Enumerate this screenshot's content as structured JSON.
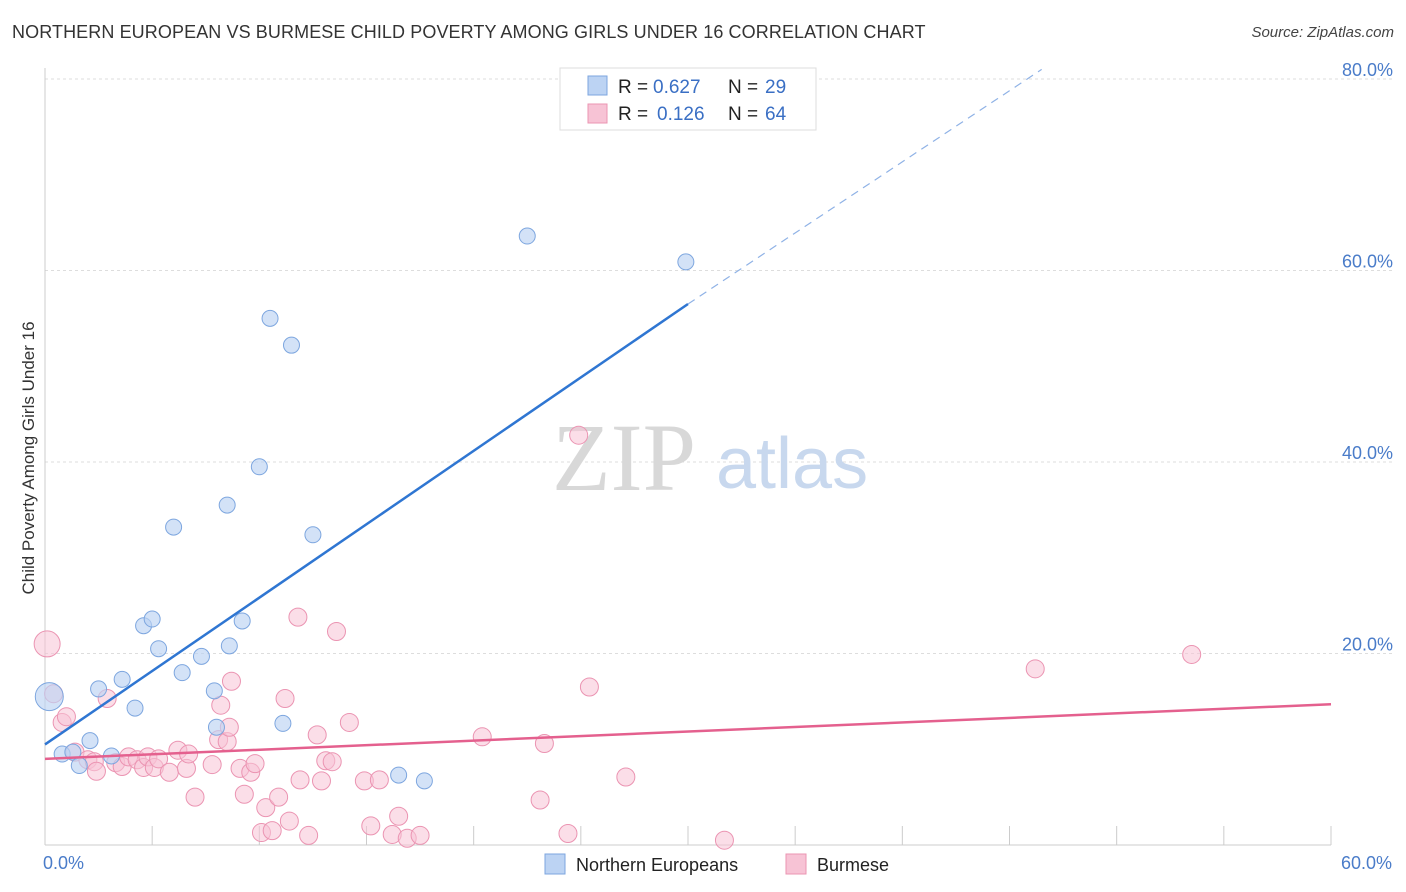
{
  "title": "NORTHERN EUROPEAN VS BURMESE CHILD POVERTY AMONG GIRLS UNDER 16 CORRELATION CHART",
  "source": "Source: ZipAtlas.com",
  "watermark": {
    "zip": "ZIP",
    "atlas": "atlas"
  },
  "colors": {
    "blue": "#2f76d2",
    "pink": "#e4608e",
    "blue_fill": "#bcd3f3",
    "pink_fill": "#f7c3d5",
    "grid": "#dddddd",
    "tick_text": "#4a7cc9"
  },
  "chart_data": {
    "type": "scatter",
    "title": "NORTHERN EUROPEAN VS BURMESE CHILD POVERTY AMONG GIRLS UNDER 16 CORRELATION CHART",
    "xlabel": "",
    "ylabel": "Child Poverty Among Girls Under 16",
    "xlim": [
      0,
      60
    ],
    "ylim": [
      0,
      80
    ],
    "x_tick_labels": [
      "0.0%",
      "60.0%"
    ],
    "y_ticks": [
      20,
      40,
      60,
      80
    ],
    "y_tick_labels": [
      "20.0%",
      "40.0%",
      "60.0%",
      "80.0%"
    ],
    "legend_stats": [
      {
        "r_label": "R =",
        "r": "0.627",
        "n_label": "N =",
        "n": "29"
      },
      {
        "r_label": "R =",
        "r": "0.126",
        "n_label": "N =",
        "n": "64"
      }
    ],
    "series": [
      {
        "name": "Northern Europeans",
        "color": "#2f76d2",
        "trend": {
          "x0": 0,
          "y0": 10.5,
          "x1": 30,
          "y1": 56.5,
          "dash_x1": 46.5,
          "dash_y1": 81
        },
        "points": [
          [
            0.2,
            15.5
          ],
          [
            0.8,
            9.5
          ],
          [
            1.3,
            9.7
          ],
          [
            1.6,
            8.3
          ],
          [
            2.1,
            10.9
          ],
          [
            2.5,
            16.3
          ],
          [
            3.1,
            9.3
          ],
          [
            3.6,
            17.3
          ],
          [
            4.2,
            14.3
          ],
          [
            4.6,
            22.9
          ],
          [
            5.0,
            23.6
          ],
          [
            5.3,
            20.5
          ],
          [
            6.0,
            33.2
          ],
          [
            6.4,
            18.0
          ],
          [
            7.3,
            19.7
          ],
          [
            7.9,
            16.1
          ],
          [
            8.0,
            12.3
          ],
          [
            8.5,
            35.5
          ],
          [
            8.6,
            20.8
          ],
          [
            9.2,
            23.4
          ],
          [
            10.0,
            39.5
          ],
          [
            10.5,
            55.0
          ],
          [
            11.1,
            12.7
          ],
          [
            11.5,
            52.2
          ],
          [
            12.5,
            32.4
          ],
          [
            16.5,
            7.3
          ],
          [
            17.7,
            6.7
          ],
          [
            22.5,
            63.6
          ],
          [
            29.9,
            60.9
          ]
        ]
      },
      {
        "name": "Burmese",
        "color": "#e4608e",
        "trend": {
          "x0": 0,
          "y0": 9.0,
          "x1": 60,
          "y1": 14.7
        },
        "points": [
          [
            0.1,
            21.0
          ],
          [
            0.4,
            15.8
          ],
          [
            0.8,
            12.8
          ],
          [
            1.0,
            13.4
          ],
          [
            1.4,
            9.7
          ],
          [
            2.0,
            8.9
          ],
          [
            2.3,
            8.7
          ],
          [
            2.4,
            7.7
          ],
          [
            2.9,
            15.3
          ],
          [
            3.3,
            8.6
          ],
          [
            3.6,
            8.2
          ],
          [
            3.9,
            9.2
          ],
          [
            4.3,
            8.9
          ],
          [
            4.6,
            8.1
          ],
          [
            4.8,
            9.2
          ],
          [
            5.1,
            8.1
          ],
          [
            5.3,
            9.0
          ],
          [
            5.8,
            7.6
          ],
          [
            6.2,
            9.9
          ],
          [
            6.6,
            8.0
          ],
          [
            6.7,
            9.5
          ],
          [
            7.0,
            5.0
          ],
          [
            7.8,
            8.4
          ],
          [
            8.1,
            11.0
          ],
          [
            8.2,
            14.6
          ],
          [
            8.5,
            10.8
          ],
          [
            8.6,
            12.3
          ],
          [
            8.7,
            17.1
          ],
          [
            9.1,
            8.0
          ],
          [
            9.3,
            5.3
          ],
          [
            9.6,
            7.6
          ],
          [
            9.8,
            8.5
          ],
          [
            10.1,
            1.3
          ],
          [
            10.3,
            3.9
          ],
          [
            10.6,
            1.5
          ],
          [
            10.9,
            5.0
          ],
          [
            11.2,
            15.3
          ],
          [
            11.4,
            2.5
          ],
          [
            11.8,
            23.8
          ],
          [
            11.9,
            6.8
          ],
          [
            12.3,
            1.0
          ],
          [
            12.7,
            11.5
          ],
          [
            12.9,
            6.7
          ],
          [
            13.1,
            8.8
          ],
          [
            13.4,
            8.7
          ],
          [
            13.6,
            22.3
          ],
          [
            14.2,
            12.8
          ],
          [
            14.9,
            6.7
          ],
          [
            15.2,
            2.0
          ],
          [
            15.6,
            6.8
          ],
          [
            16.2,
            1.1
          ],
          [
            16.5,
            3.0
          ],
          [
            16.9,
            0.7
          ],
          [
            17.5,
            1.0
          ],
          [
            20.4,
            11.3
          ],
          [
            23.1,
            4.7
          ],
          [
            23.3,
            10.6
          ],
          [
            24.4,
            1.2
          ],
          [
            24.9,
            42.8
          ],
          [
            25.4,
            16.5
          ],
          [
            27.1,
            7.1
          ],
          [
            31.7,
            0.5
          ],
          [
            46.2,
            18.4
          ],
          [
            53.5,
            19.9
          ]
        ]
      }
    ]
  },
  "legend_bottom": [
    {
      "label": "Northern Europeans"
    },
    {
      "label": "Burmese"
    }
  ]
}
